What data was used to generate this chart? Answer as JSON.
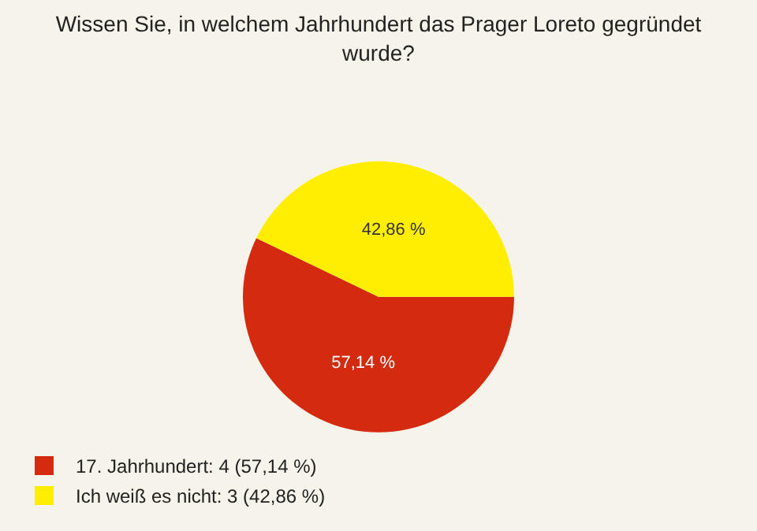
{
  "chart_data": {
    "type": "pie",
    "title": "Wissen Sie, in welchem Jahrhundert das Prager Loreto gegründet wurde?",
    "categories": [
      "17. Jahrhundert: 4 (57,14 %)",
      "Ich weiß es nicht: 3 (42,86 %)"
    ],
    "values": [
      57.14,
      42.86
    ],
    "value_labels": [
      "57,14 %",
      "42,86 %"
    ],
    "colors": [
      "#d42a10",
      "#ffee00"
    ],
    "legend": "bottom left"
  }
}
